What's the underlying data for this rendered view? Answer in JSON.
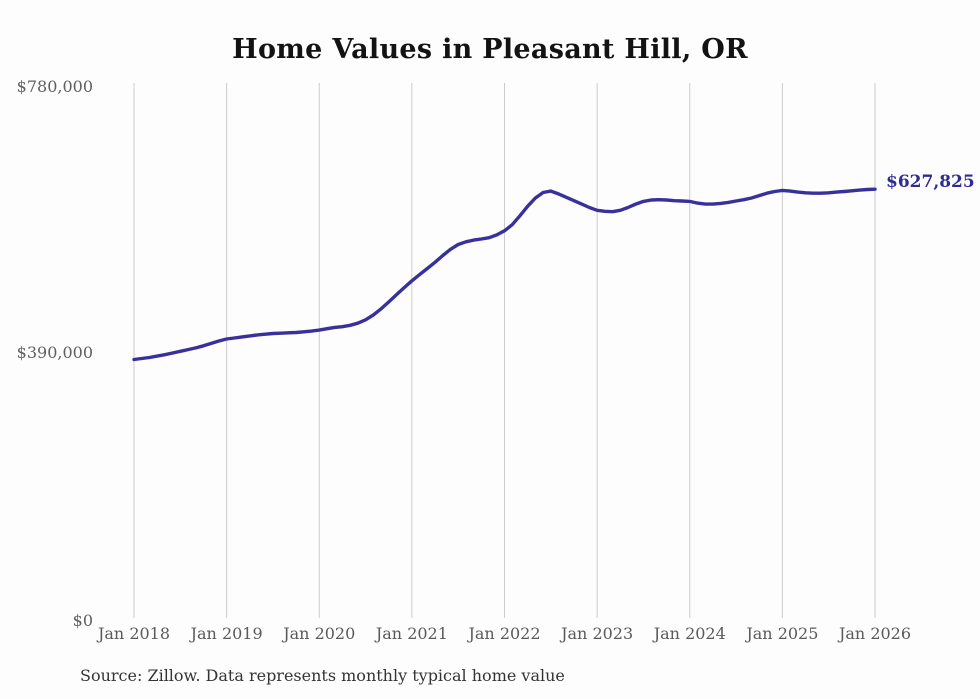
{
  "page": {
    "title": "Home Values in Pleasant Hill, OR",
    "source_note": "Source: Zillow. Data represents monthly typical home value"
  },
  "annotation": {
    "latest_value_label": "$627,825"
  },
  "colors": {
    "line": "#39319b",
    "gridline": "#cccccc",
    "title_text": "#131313",
    "axis_text": "#5a5a5a",
    "end_label_text": "#2e2c91",
    "background": "#fdfdfd"
  },
  "chart_data": {
    "type": "line",
    "title": "Home Values in Pleasant Hill, OR",
    "xlabel": "",
    "ylabel": "",
    "x_unit": "month",
    "x_start": "Jan 2018",
    "x_end": "Jan 2026",
    "categories": [
      "Jan 2018",
      "Jan 2019",
      "Jan 2020",
      "Jan 2021",
      "Jan 2022",
      "Jan 2023",
      "Jan 2024",
      "Jan 2025",
      "Jan 2026"
    ],
    "y_ticks": [
      "$780,000",
      "$390,000",
      "$0"
    ],
    "ylim": [
      0,
      780000
    ],
    "grid": "vertical-only",
    "legend": "none",
    "latest_value": 627825,
    "series": [
      {
        "name": "Monthly typical home value",
        "values": [
          379000,
          380500,
          382000,
          384000,
          386000,
          388500,
          391000,
          393500,
          396000,
          399000,
          402500,
          406000,
          409000,
          410500,
          412000,
          413500,
          415000,
          416000,
          417000,
          417500,
          418000,
          418500,
          419500,
          420500,
          422000,
          424000,
          426000,
          427000,
          429000,
          432000,
          437000,
          444000,
          453000,
          463000,
          473500,
          484000,
          494000,
          503000,
          512000,
          521000,
          531000,
          540000,
          547000,
          551000,
          553500,
          555000,
          557000,
          561000,
          567000,
          576000,
          589000,
          603000,
          615000,
          623000,
          625000,
          621000,
          616000,
          611000,
          606000,
          601000,
          597000,
          595500,
          595000,
          597000,
          601000,
          606000,
          610000,
          612000,
          612500,
          612000,
          611000,
          610500,
          610000,
          607500,
          606000,
          606000,
          607000,
          608500,
          610500,
          612500,
          615000,
          618500,
          622000,
          624500,
          626000,
          625000,
          623500,
          622500,
          622000,
          622000,
          622500,
          623500,
          624500,
          625500,
          626500,
          627300,
          627825
        ]
      }
    ]
  }
}
